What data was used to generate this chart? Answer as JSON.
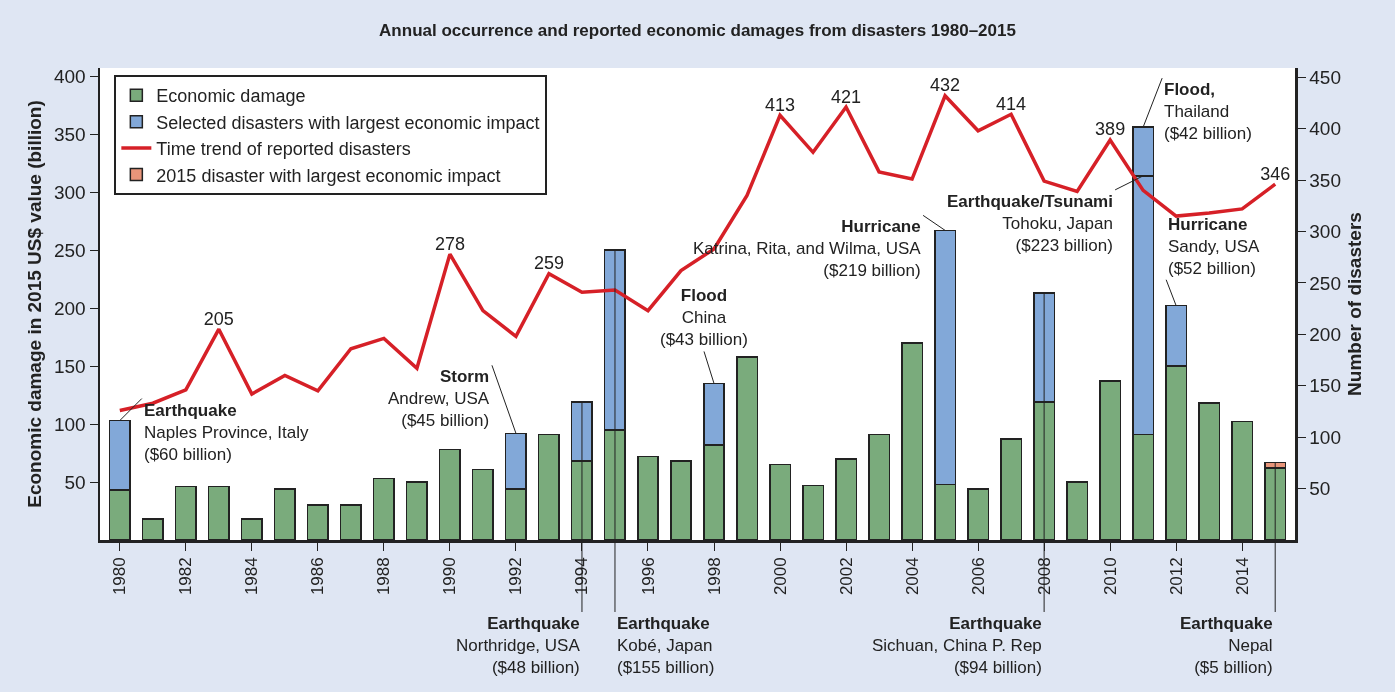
{
  "chart_data": {
    "type": "bar",
    "title": "Annual occurrence and reported economic damages from disasters 1980–2015",
    "ylabel": "Economic damage in 2015 US$ value (billion)",
    "y2label": "Number of disasters",
    "x": [
      1980,
      1981,
      1982,
      1983,
      1984,
      1985,
      1986,
      1987,
      1988,
      1989,
      1990,
      1991,
      1992,
      1993,
      1994,
      1995,
      1996,
      1997,
      1998,
      1999,
      2000,
      2001,
      2002,
      2003,
      2004,
      2005,
      2006,
      2007,
      2008,
      2009,
      2010,
      2011,
      2012,
      2013,
      2014,
      2015
    ],
    "xlim": [
      1979.4,
      2015.6
    ],
    "xticks": [
      1980,
      1982,
      1984,
      1986,
      1988,
      1990,
      1992,
      1994,
      1996,
      1998,
      2000,
      2002,
      2004,
      2006,
      2008,
      2010,
      2012,
      2014
    ],
    "ylim": [
      0,
      407
    ],
    "yticks": [
      50,
      100,
      150,
      200,
      250,
      300,
      350,
      400
    ],
    "y2lim": [
      0,
      459
    ],
    "y2ticks": [
      50,
      100,
      150,
      200,
      250,
      300,
      350,
      400,
      450
    ],
    "stacked": true,
    "grid": false,
    "legend": "top left",
    "series": [
      {
        "name": "Economic damage",
        "color": "#7aab7c",
        "values": [
          43,
          18,
          46,
          46,
          18,
          44,
          30,
          30,
          53,
          50,
          78,
          61,
          44,
          91,
          68,
          95,
          72,
          68,
          82,
          158,
          65,
          47,
          70,
          91,
          170,
          48,
          44,
          87,
          119,
          50,
          137,
          91,
          150,
          118,
          102,
          62
        ]
      },
      {
        "name": "Selected disasters with largest economic impact",
        "color": "#82a8d8",
        "values": [
          60,
          null,
          null,
          null,
          null,
          null,
          null,
          null,
          null,
          null,
          null,
          null,
          48,
          null,
          51,
          155,
          null,
          null,
          53,
          null,
          null,
          null,
          null,
          null,
          null,
          219,
          null,
          null,
          94,
          null,
          null,
          223,
          52,
          null,
          null,
          null
        ]
      },
      {
        "color": "#82a8d8",
        "values": [
          null,
          null,
          null,
          null,
          null,
          null,
          null,
          null,
          null,
          null,
          null,
          null,
          null,
          null,
          null,
          null,
          null,
          null,
          null,
          null,
          null,
          null,
          null,
          null,
          null,
          null,
          null,
          null,
          null,
          null,
          null,
          42,
          null,
          null,
          null,
          null
        ]
      },
      {
        "name": "Time trend of reported disasters",
        "type": "line",
        "axis": "y2",
        "color": "#d62027",
        "values": [
          126,
          133,
          146,
          205,
          142,
          160,
          145,
          186,
          196,
          167,
          278,
          223,
          198,
          259,
          241,
          243,
          223,
          262,
          283,
          335,
          413,
          377,
          421,
          358,
          351,
          432,
          398,
          414,
          349,
          339,
          389,
          340,
          315,
          318,
          322,
          346
        ],
        "value_labels": [
          null,
          null,
          null,
          "205",
          null,
          null,
          null,
          null,
          null,
          null,
          "278",
          null,
          null,
          "259",
          null,
          null,
          null,
          null,
          null,
          null,
          "413",
          null,
          "421",
          null,
          null,
          "432",
          null,
          "414",
          null,
          null,
          "389",
          null,
          null,
          null,
          null,
          "346"
        ]
      },
      {
        "name": "2015 disaster with largest economic impact",
        "color": "#e8957a",
        "values": [
          null,
          null,
          null,
          null,
          null,
          null,
          null,
          null,
          null,
          null,
          null,
          null,
          null,
          null,
          null,
          null,
          null,
          null,
          null,
          null,
          null,
          null,
          null,
          null,
          null,
          null,
          null,
          null,
          null,
          null,
          null,
          null,
          null,
          null,
          null,
          5
        ]
      }
    ],
    "annotations": [
      {
        "text": "Earthquake\nNaples Province, Italy\n($60 billion)",
        "x": 1980,
        "y": 103
      },
      {
        "text": "Storm\nAndrew, USA\n($45 billion)",
        "x": 1992,
        "y": 92
      },
      {
        "text": "Earthquake\nNorthridge, USA\n($48 billion)",
        "x": 1994,
        "y": 119
      },
      {
        "text": "Earthquake\nKobé, Japan\n($155 billion)",
        "x": 1995,
        "y": 250
      },
      {
        "text": "Flood\nChina\n($43 billion)",
        "x": 1998,
        "y": 135
      },
      {
        "text": "Hurricane\nKatrina, Rita, and Wilma, USA\n($219 billion)",
        "x": 2005,
        "y": 267
      },
      {
        "text": "Earthquake\nSichuan, China P. Rep\n($94 billion)",
        "x": 2008,
        "y": 213
      },
      {
        "text": "Earthquake/Tsunami\nTohoku, Japan\n($223 billion)",
        "x": 2011,
        "y": 314
      },
      {
        "text": "Flood,\nThailand\n($42 billion)",
        "x": 2011,
        "y": 356
      },
      {
        "text": "Hurricane\nSandy, USA\n($52 billion)",
        "x": 2012,
        "y": 202
      },
      {
        "text": "Earthquake\nNepal\n($5 billion)",
        "x": 2015,
        "y": 67
      }
    ]
  }
}
